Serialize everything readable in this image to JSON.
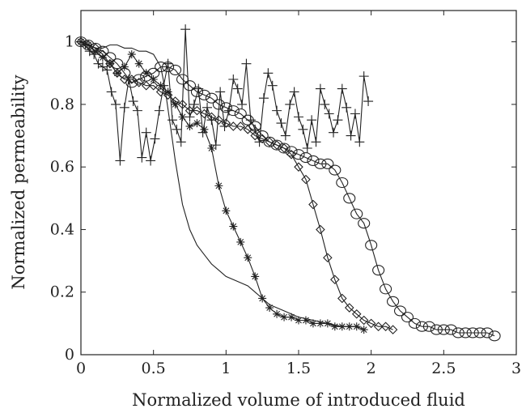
{
  "chart_data": {
    "type": "line",
    "title": "",
    "xlabel": "Normalized volume of introduced fluid",
    "ylabel": "Normalized permeability",
    "xlim": [
      0,
      3
    ],
    "ylim": [
      0,
      1.1
    ],
    "xticks": [
      0,
      0.5,
      1,
      1.5,
      2,
      2.5,
      3
    ],
    "xtick_labels": [
      "0",
      "0.5",
      "1",
      "1.5",
      "2",
      "2.5",
      "3"
    ],
    "yticks": [
      0,
      0.2,
      0.4,
      0.6,
      0.8,
      1
    ],
    "ytick_labels": [
      "0",
      "0.2",
      "0.4",
      "0.6",
      "0.8",
      "1"
    ],
    "grid": false,
    "legend": "none",
    "series": [
      {
        "marker": "none",
        "x": [
          0,
          0.05,
          0.1,
          0.15,
          0.2,
          0.25,
          0.3,
          0.35,
          0.4,
          0.45,
          0.5,
          0.55,
          0.58,
          0.62,
          0.65,
          0.7,
          0.75,
          0.8,
          0.85,
          0.9,
          0.95,
          1.0,
          1.05,
          1.1,
          1.15,
          1.2,
          1.25,
          1.3,
          1.4,
          1.5,
          1.6,
          1.7,
          1.8,
          1.9,
          1.95
        ],
        "y": [
          1.0,
          0.99,
          0.98,
          0.98,
          0.99,
          0.99,
          0.98,
          0.98,
          0.97,
          0.97,
          0.96,
          0.92,
          0.85,
          0.72,
          0.62,
          0.48,
          0.4,
          0.35,
          0.32,
          0.29,
          0.27,
          0.25,
          0.24,
          0.23,
          0.22,
          0.2,
          0.18,
          0.16,
          0.14,
          0.12,
          0.11,
          0.1,
          0.09,
          0.09,
          0.08
        ]
      },
      {
        "marker": "plus",
        "x": [
          0,
          0.03,
          0.06,
          0.09,
          0.12,
          0.15,
          0.18,
          0.21,
          0.24,
          0.27,
          0.3,
          0.33,
          0.36,
          0.39,
          0.42,
          0.45,
          0.48,
          0.51,
          0.54,
          0.57,
          0.6,
          0.63,
          0.66,
          0.69,
          0.72,
          0.75,
          0.78,
          0.81,
          0.84,
          0.87,
          0.9,
          0.93,
          0.96,
          0.99,
          1.02,
          1.05,
          1.08,
          1.11,
          1.14,
          1.17,
          1.2,
          1.23,
          1.26,
          1.29,
          1.32,
          1.35,
          1.38,
          1.41,
          1.44,
          1.47,
          1.5,
          1.53,
          1.56,
          1.59,
          1.62,
          1.65,
          1.68,
          1.71,
          1.74,
          1.77,
          1.8,
          1.83,
          1.86,
          1.89,
          1.92,
          1.95,
          1.98
        ],
        "y": [
          1.0,
          0.99,
          0.97,
          0.96,
          0.93,
          0.92,
          0.91,
          0.84,
          0.8,
          0.62,
          0.79,
          0.88,
          0.81,
          0.78,
          0.63,
          0.71,
          0.62,
          0.69,
          0.78,
          0.86,
          0.93,
          0.75,
          0.72,
          0.68,
          1.04,
          0.76,
          0.8,
          0.85,
          0.71,
          0.79,
          0.75,
          0.67,
          0.84,
          0.73,
          0.78,
          0.88,
          0.85,
          0.8,
          0.93,
          0.75,
          0.72,
          0.68,
          0.82,
          0.9,
          0.86,
          0.78,
          0.74,
          0.7,
          0.8,
          0.84,
          0.76,
          0.72,
          0.66,
          0.75,
          0.68,
          0.85,
          0.8,
          0.77,
          0.71,
          0.75,
          0.85,
          0.79,
          0.7,
          0.77,
          0.68,
          0.89,
          0.81
        ]
      },
      {
        "marker": "star",
        "x": [
          0,
          0.05,
          0.1,
          0.15,
          0.2,
          0.25,
          0.3,
          0.35,
          0.4,
          0.45,
          0.5,
          0.55,
          0.6,
          0.65,
          0.7,
          0.75,
          0.8,
          0.85,
          0.9,
          0.95,
          1.0,
          1.05,
          1.1,
          1.15,
          1.2,
          1.25,
          1.3,
          1.35,
          1.4,
          1.45,
          1.5,
          1.55,
          1.6,
          1.65,
          1.7,
          1.75,
          1.8,
          1.85,
          1.9,
          1.95
        ],
        "y": [
          1.0,
          0.99,
          0.97,
          0.95,
          0.93,
          0.9,
          0.92,
          0.96,
          0.93,
          0.9,
          0.88,
          0.86,
          0.84,
          0.8,
          0.76,
          0.73,
          0.74,
          0.72,
          0.66,
          0.54,
          0.46,
          0.41,
          0.36,
          0.31,
          0.25,
          0.18,
          0.15,
          0.13,
          0.12,
          0.12,
          0.11,
          0.11,
          0.1,
          0.1,
          0.1,
          0.09,
          0.09,
          0.09,
          0.09,
          0.08
        ]
      },
      {
        "marker": "diamond",
        "x": [
          0,
          0.05,
          0.1,
          0.15,
          0.2,
          0.25,
          0.3,
          0.35,
          0.4,
          0.45,
          0.5,
          0.55,
          0.6,
          0.65,
          0.7,
          0.75,
          0.8,
          0.85,
          0.9,
          0.95,
          1.0,
          1.05,
          1.1,
          1.15,
          1.2,
          1.25,
          1.3,
          1.35,
          1.4,
          1.45,
          1.5,
          1.55,
          1.6,
          1.65,
          1.7,
          1.75,
          1.8,
          1.85,
          1.9,
          1.95,
          2.0,
          2.05,
          2.1,
          2.15
        ],
        "y": [
          1.0,
          0.99,
          0.98,
          0.96,
          0.93,
          0.9,
          0.88,
          0.88,
          0.87,
          0.86,
          0.86,
          0.84,
          0.83,
          0.81,
          0.8,
          0.78,
          0.78,
          0.77,
          0.76,
          0.75,
          0.74,
          0.73,
          0.73,
          0.72,
          0.7,
          0.69,
          0.68,
          0.67,
          0.66,
          0.64,
          0.6,
          0.56,
          0.48,
          0.4,
          0.31,
          0.24,
          0.18,
          0.15,
          0.13,
          0.11,
          0.1,
          0.09,
          0.09,
          0.08
        ]
      },
      {
        "marker": "circle",
        "x": [
          0,
          0.05,
          0.1,
          0.15,
          0.2,
          0.25,
          0.3,
          0.35,
          0.4,
          0.45,
          0.5,
          0.55,
          0.6,
          0.65,
          0.7,
          0.75,
          0.8,
          0.85,
          0.9,
          0.95,
          1.0,
          1.05,
          1.1,
          1.15,
          1.2,
          1.25,
          1.3,
          1.35,
          1.4,
          1.45,
          1.5,
          1.55,
          1.6,
          1.65,
          1.7,
          1.75,
          1.8,
          1.85,
          1.9,
          1.95,
          2.0,
          2.05,
          2.1,
          2.15,
          2.2,
          2.25,
          2.3,
          2.35,
          2.4,
          2.45,
          2.5,
          2.55,
          2.6,
          2.65,
          2.7,
          2.75,
          2.8,
          2.85
        ],
        "y": [
          1.0,
          0.99,
          0.98,
          0.97,
          0.95,
          0.93,
          0.9,
          0.87,
          0.88,
          0.89,
          0.9,
          0.92,
          0.92,
          0.91,
          0.88,
          0.86,
          0.84,
          0.83,
          0.82,
          0.8,
          0.79,
          0.78,
          0.77,
          0.75,
          0.73,
          0.7,
          0.68,
          0.67,
          0.66,
          0.65,
          0.64,
          0.63,
          0.62,
          0.61,
          0.61,
          0.59,
          0.55,
          0.5,
          0.45,
          0.42,
          0.35,
          0.27,
          0.21,
          0.17,
          0.14,
          0.12,
          0.1,
          0.09,
          0.09,
          0.08,
          0.08,
          0.08,
          0.07,
          0.07,
          0.07,
          0.07,
          0.07,
          0.06
        ]
      }
    ]
  }
}
